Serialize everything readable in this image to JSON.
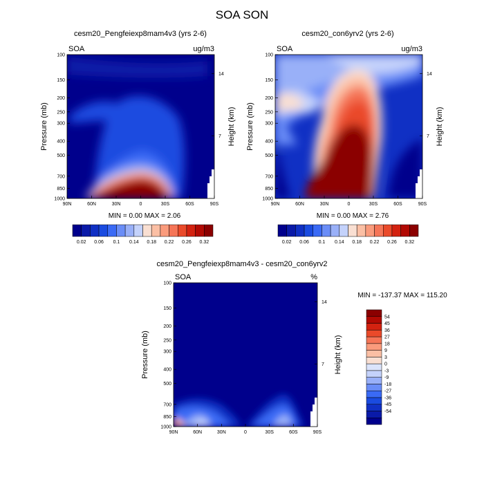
{
  "title": "SOA SON",
  "palette_main": [
    "#00008c",
    "#0a1aa8",
    "#1030c4",
    "#1a4be0",
    "#3a6af5",
    "#6a8df7",
    "#99b0f8",
    "#c4d2fb",
    "#f9dfd2",
    "#fbbfa4",
    "#fa9b7c",
    "#f57557",
    "#ea4a2a",
    "#d32210",
    "#b20a03",
    "#8b0000"
  ],
  "palette_diff": [
    "#00008c",
    "#0a1aa8",
    "#1030c4",
    "#1a4be0",
    "#3a6af5",
    "#6a8df7",
    "#99b0f8",
    "#c4d2fb",
    "#dbe4fc",
    "#f9dfd2",
    "#fbbfa4",
    "#fa9b7c",
    "#f57557",
    "#ea4a2a",
    "#d32210",
    "#b20a03",
    "#8b0000"
  ],
  "chart_data": [
    {
      "type": "contour",
      "panel_title": "cesm20_Pengfeiexp8mam4v3 (yrs 2-6)",
      "left_label": "SOA",
      "right_label": "ug/m3",
      "ylabel": "Pressure (mb)",
      "y2label": "Height (km)",
      "x_ticks": [
        "90N",
        "60N",
        "30N",
        "0",
        "30S",
        "60S",
        "90S"
      ],
      "y_ticks": [
        "100",
        "150",
        "200",
        "250",
        "300",
        "400",
        "500",
        "700",
        "850",
        "1000"
      ],
      "y2_ticks": [
        "14",
        "7"
      ],
      "stats": "MIN =   0.00  MAX =   2.06",
      "colorbar_labels": [
        "0.02",
        "0.06",
        "0.1",
        "0.14",
        "0.18",
        "0.22",
        "0.26",
        "0.32"
      ],
      "min": 0.0,
      "max": 2.06
    },
    {
      "type": "contour",
      "panel_title": "cesm20_con6yrv2 (yrs 2-6)",
      "left_label": "SOA",
      "right_label": "ug/m3",
      "ylabel": "Pressure (mb)",
      "y2label": "Height (km)",
      "x_ticks": [
        "90N",
        "60N",
        "30N",
        "0",
        "30S",
        "60S",
        "90S"
      ],
      "y_ticks": [
        "100",
        "150",
        "200",
        "250",
        "300",
        "400",
        "500",
        "700",
        "850",
        "1000"
      ],
      "y2_ticks": [
        "14",
        "7"
      ],
      "stats": "MIN =   0.00  MAX =   2.76",
      "colorbar_labels": [
        "0.02",
        "0.06",
        "0.1",
        "0.14",
        "0.18",
        "0.22",
        "0.26",
        "0.32"
      ],
      "min": 0.0,
      "max": 2.76
    },
    {
      "type": "contour",
      "panel_title": "cesm20_Pengfeiexp8mam4v3 - cesm20_con6yrv2",
      "left_label": "SOA",
      "right_label": "%",
      "ylabel": "Pressure (mb)",
      "y2label": "Height (km)",
      "x_ticks": [
        "90N",
        "60N",
        "30N",
        "0",
        "30S",
        "60S",
        "90S"
      ],
      "y_ticks": [
        "100",
        "150",
        "200",
        "250",
        "300",
        "400",
        "500",
        "700",
        "850",
        "1000"
      ],
      "y2_ticks": [
        "14",
        "7"
      ],
      "stats": "MIN = -137.37  MAX = 115.20",
      "colorbar_labels": [
        "54",
        "45",
        "36",
        "27",
        "18",
        "9",
        "3",
        "0",
        "-3",
        "-9",
        "-18",
        "-27",
        "-36",
        "-45",
        "-54"
      ],
      "min": -137.37,
      "max": 115.2
    }
  ]
}
